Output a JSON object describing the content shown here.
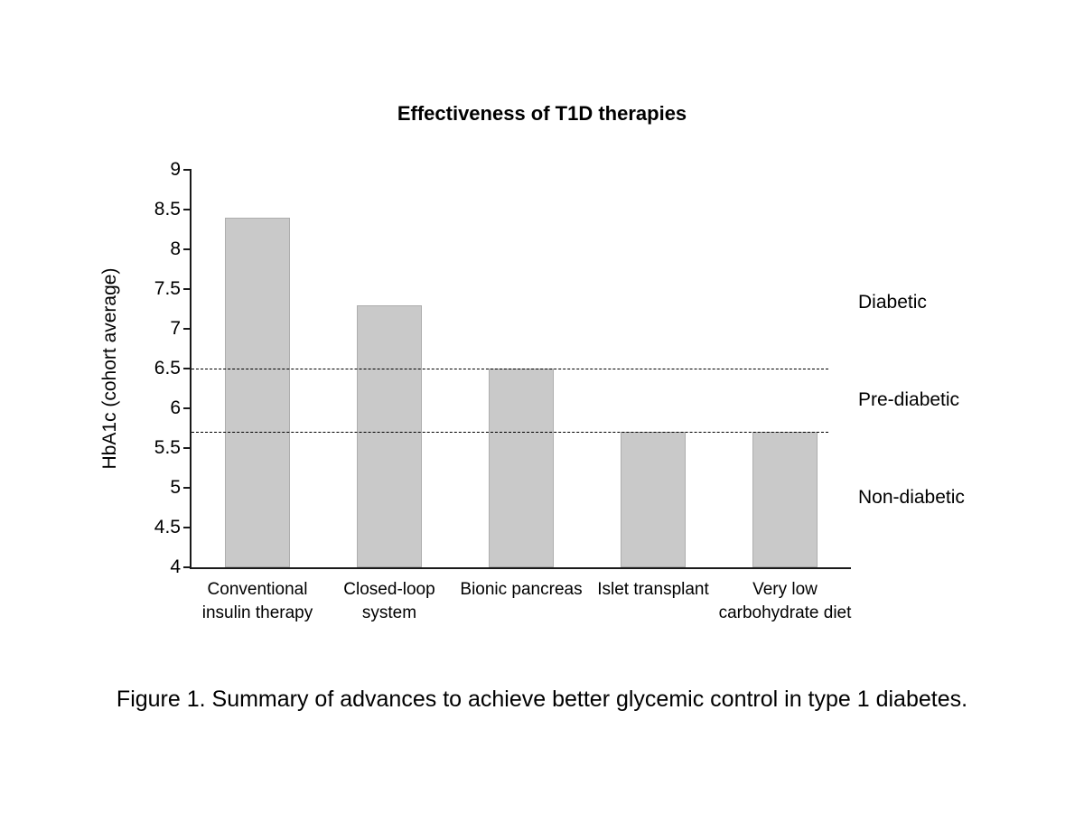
{
  "chart_data": {
    "type": "bar",
    "title": "Effectiveness of T1D therapies",
    "xlabel": "",
    "ylabel": "HbA1c (cohort average)",
    "categories": [
      "Conventional insulin therapy",
      "Closed-loop system",
      "Bionic pancreas",
      "Islet transplant",
      "Very low carbohydrate diet"
    ],
    "values": [
      8.4,
      7.3,
      6.5,
      5.7,
      5.7
    ],
    "ylim": [
      4,
      9
    ],
    "ytick_step": 0.5,
    "grid": false,
    "legend": false,
    "bar_color": "#c9c9c9",
    "thresholds": [
      {
        "value": 6.5,
        "style": "dashed",
        "color": "#000000"
      },
      {
        "value": 5.7,
        "style": "dashed",
        "color": "#000000"
      }
    ],
    "zone_labels": [
      {
        "text": "Diabetic",
        "y_value": 7.33
      },
      {
        "text": "Pre-diabetic",
        "y_value": 6.1
      },
      {
        "text": "Non-diabetic",
        "y_value": 4.87
      }
    ]
  },
  "caption": "Figure 1. Summary of advances to achieve better glycemic control in type 1 diabetes."
}
